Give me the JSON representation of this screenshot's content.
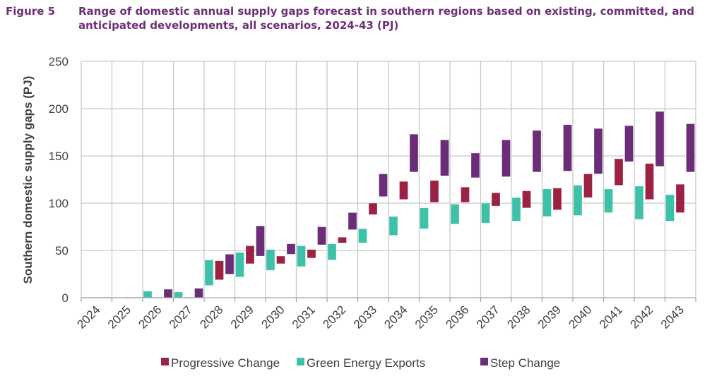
{
  "figure": {
    "number": "Figure 5",
    "title": "Range of domestic annual supply gaps forecast in southern regions based on existing, committed, and anticipated developments, all scenarios, 2024-43 (PJ)"
  },
  "colors": {
    "title": "#6E2F78",
    "progressive": "#9B2242",
    "green": "#3EC1A9",
    "step": "#6B2D77",
    "grid": "#C8C8C8",
    "text": "#404040"
  },
  "chart_data": {
    "type": "bar",
    "subtype": "floating-range",
    "title": "Range of domestic annual supply gaps forecast in southern regions based on existing, committed, and anticipated developments, all scenarios, 2024-43 (PJ)",
    "xlabel": "",
    "ylabel": "Southern domestic supply gaps (PJ)",
    "ylim": [
      0,
      250
    ],
    "yticks": [
      0,
      50,
      100,
      150,
      200,
      250
    ],
    "grid": true,
    "legend_position": "bottom",
    "categories": [
      "2024",
      "2025",
      "2026",
      "2027",
      "2028",
      "2029",
      "2030",
      "2031",
      "2032",
      "2033",
      "2034",
      "2035",
      "2036",
      "2037",
      "2038",
      "2039",
      "2040",
      "2041",
      "2042",
      "2043"
    ],
    "bar_order": [
      "Green Energy Exports",
      "Progressive Change",
      "Step Change"
    ],
    "series": [
      {
        "name": "Progressive Change",
        "color_key": "progressive",
        "low": [
          0,
          0,
          0,
          0,
          19,
          36,
          36,
          42,
          58,
          88,
          104,
          101,
          101,
          97,
          95,
          93,
          106,
          119,
          104,
          90
        ],
        "high": [
          0,
          0.5,
          0.5,
          0.5,
          39,
          55,
          44,
          51,
          64,
          100,
          123,
          124,
          117,
          111,
          113,
          116,
          131,
          147,
          142,
          120
        ]
      },
      {
        "name": "Green Energy Exports",
        "color_key": "green",
        "low": [
          0,
          0,
          0,
          0,
          13,
          22,
          29,
          33,
          40,
          58,
          66,
          73,
          78,
          79,
          81,
          86,
          87,
          90,
          83,
          81
        ],
        "high": [
          0,
          0.5,
          7,
          6,
          40,
          48,
          51,
          55,
          57,
          73,
          86,
          95,
          99,
          100,
          106,
          115,
          119,
          115,
          118,
          109
        ]
      },
      {
        "name": "Step Change",
        "color_key": "step",
        "low": [
          0,
          0,
          0,
          0,
          25,
          44,
          46,
          56,
          72,
          107,
          133,
          129,
          127,
          128,
          133,
          134,
          131,
          144,
          139,
          133
        ],
        "high": [
          0,
          0.5,
          9,
          10,
          46,
          76,
          57,
          75,
          90,
          131,
          173,
          167,
          153,
          167,
          177,
          183,
          179,
          182,
          197,
          184
        ]
      }
    ]
  },
  "legend": {
    "items": [
      {
        "label": "Progressive Change",
        "color_key": "progressive"
      },
      {
        "label": "Green Energy Exports",
        "color_key": "green"
      },
      {
        "label": "Step Change",
        "color_key": "step"
      }
    ]
  }
}
